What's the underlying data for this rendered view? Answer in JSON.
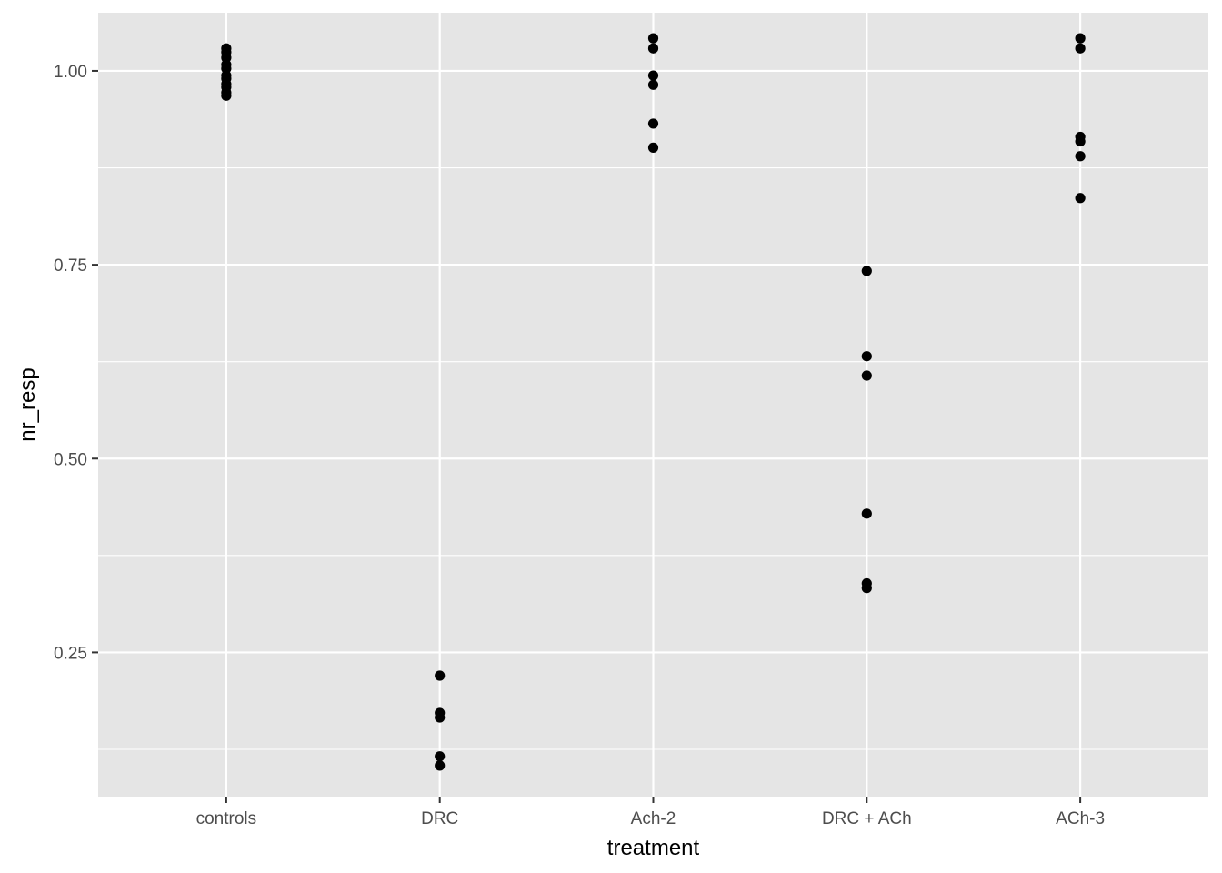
{
  "chart_data": {
    "type": "scatter",
    "title": "",
    "xlabel": "treatment",
    "ylabel": "nr_resp",
    "categories": [
      "controls",
      "DRC",
      "Ach-2",
      "DRC + ACh",
      "ACh-3"
    ],
    "ylim": [
      0.064,
      1.075
    ],
    "yticks": [
      0.25,
      0.5,
      0.75,
      1.0
    ],
    "ytick_labels": [
      "0.25",
      "0.50",
      "0.75",
      "1.00"
    ],
    "grid": true,
    "legend": "none",
    "colors": {
      "panel": "#e5e5e5",
      "grid": "#ffffff",
      "point": "#000000",
      "tick": "#333333"
    },
    "points": [
      {
        "category": "controls",
        "y": 1.029
      },
      {
        "category": "controls",
        "y": 1.024
      },
      {
        "category": "controls",
        "y": 1.017
      },
      {
        "category": "controls",
        "y": 1.008
      },
      {
        "category": "controls",
        "y": 1.003
      },
      {
        "category": "controls",
        "y": 0.994
      },
      {
        "category": "controls",
        "y": 0.99
      },
      {
        "category": "controls",
        "y": 0.983
      },
      {
        "category": "controls",
        "y": 0.979
      },
      {
        "category": "controls",
        "y": 0.972
      },
      {
        "category": "controls",
        "y": 0.968
      },
      {
        "category": "DRC",
        "y": 0.22
      },
      {
        "category": "DRC",
        "y": 0.172
      },
      {
        "category": "DRC",
        "y": 0.166
      },
      {
        "category": "DRC",
        "y": 0.116
      },
      {
        "category": "DRC",
        "y": 0.104
      },
      {
        "category": "Ach-2",
        "y": 1.042
      },
      {
        "category": "Ach-2",
        "y": 1.029
      },
      {
        "category": "Ach-2",
        "y": 0.994
      },
      {
        "category": "Ach-2",
        "y": 0.982
      },
      {
        "category": "Ach-2",
        "y": 0.932
      },
      {
        "category": "Ach-2",
        "y": 0.901
      },
      {
        "category": "DRC + ACh",
        "y": 0.742
      },
      {
        "category": "DRC + ACh",
        "y": 0.632
      },
      {
        "category": "DRC + ACh",
        "y": 0.607
      },
      {
        "category": "DRC + ACh",
        "y": 0.429
      },
      {
        "category": "DRC + ACh",
        "y": 0.339
      },
      {
        "category": "DRC + ACh",
        "y": 0.333
      },
      {
        "category": "ACh-3",
        "y": 1.042
      },
      {
        "category": "ACh-3",
        "y": 1.029
      },
      {
        "category": "ACh-3",
        "y": 0.915
      },
      {
        "category": "ACh-3",
        "y": 0.909
      },
      {
        "category": "ACh-3",
        "y": 0.89
      },
      {
        "category": "ACh-3",
        "y": 0.836
      }
    ]
  }
}
